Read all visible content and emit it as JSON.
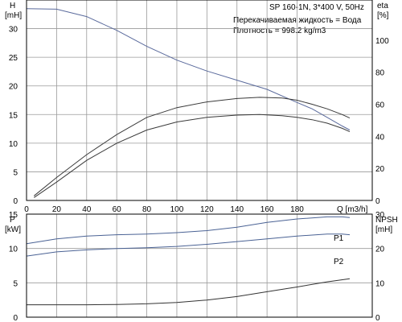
{
  "chart_data": [
    {
      "type": "line",
      "panel": "top",
      "title": "SP 160-1N, 3*400 V, 50Hz",
      "annotations": [
        "Перекачиваемая жидкость = Вода",
        "Плотность = 998.2 kg/m3"
      ],
      "xlabel": "Q [m3/h]",
      "ylabel_left": [
        "H",
        "[mH]"
      ],
      "ylabel_right": [
        "eta",
        "[%]"
      ],
      "xlim": [
        0,
        230
      ],
      "ylim_left": [
        0,
        35
      ],
      "ylim_right": [
        0,
        125
      ],
      "xticks": [
        0,
        20,
        40,
        60,
        80,
        100,
        120,
        140,
        160,
        180
      ],
      "yticks_left": [
        0,
        5,
        10,
        15,
        20,
        25,
        30
      ],
      "yticks_right": [
        0,
        20,
        40,
        60,
        80,
        100
      ],
      "grid": true,
      "series": [
        {
          "axis": "left",
          "color": "#5a6a9c",
          "x": [
            0,
            20,
            40,
            60,
            80,
            100,
            120,
            140,
            160,
            180,
            190,
            200,
            210,
            215
          ],
          "y": [
            33.5,
            33.4,
            32.1,
            29.7,
            26.9,
            24.5,
            22.6,
            21.0,
            19.4,
            17.1,
            16.0,
            14.5,
            13.0,
            12.3
          ]
        },
        {
          "axis": "left",
          "color": "#3a3a3a",
          "x": [
            5,
            20,
            40,
            60,
            80,
            100,
            120,
            140,
            155,
            170,
            180,
            190,
            200,
            210,
            215
          ],
          "y": [
            0.8,
            4.0,
            8.0,
            11.5,
            14.5,
            16.2,
            17.2,
            17.8,
            18.0,
            17.9,
            17.5,
            16.8,
            16.0,
            15.0,
            14.4
          ]
        },
        {
          "axis": "left",
          "color": "#3a3a3a",
          "x": [
            5,
            20,
            40,
            60,
            80,
            100,
            120,
            140,
            155,
            170,
            180,
            190,
            200,
            210,
            215
          ],
          "y": [
            0.5,
            3.2,
            7.0,
            10.0,
            12.3,
            13.7,
            14.5,
            14.9,
            15.0,
            14.8,
            14.5,
            14.1,
            13.5,
            12.6,
            12.0
          ]
        }
      ]
    },
    {
      "type": "line",
      "panel": "bottom",
      "xlim": [
        0,
        230
      ],
      "ylim_left": [
        0,
        15
      ],
      "ylim_right": [
        0,
        30
      ],
      "ylabel_left": [
        "P",
        "[kW]"
      ],
      "ylabel_right": [
        "NPSH",
        "[mH]"
      ],
      "yticks_left": [
        0,
        5,
        10,
        15
      ],
      "yticks_right": [
        0,
        10,
        20,
        30
      ],
      "xtick_positions": [
        0,
        20,
        40,
        60,
        80,
        100,
        120,
        140,
        160,
        180
      ],
      "grid": true,
      "series": [
        {
          "name": "P1",
          "axis": "left",
          "color": "#4a6294",
          "x": [
            0,
            20,
            40,
            60,
            80,
            100,
            120,
            140,
            160,
            180,
            200,
            210,
            215
          ],
          "y": [
            10.7,
            11.4,
            11.8,
            12.0,
            12.1,
            12.3,
            12.6,
            13.1,
            13.8,
            14.3,
            14.6,
            14.6,
            14.5
          ]
        },
        {
          "name": "P2",
          "axis": "left",
          "color": "#4a6294",
          "x": [
            0,
            20,
            40,
            60,
            80,
            100,
            120,
            140,
            160,
            180,
            200,
            210,
            215
          ],
          "y": [
            8.9,
            9.5,
            9.8,
            10.0,
            10.1,
            10.3,
            10.6,
            11.0,
            11.4,
            11.8,
            12.1,
            12.1,
            12.0
          ]
        },
        {
          "axis": "right",
          "color": "#333333",
          "x": [
            0,
            20,
            40,
            60,
            80,
            100,
            120,
            140,
            160,
            180,
            200,
            215
          ],
          "y": [
            3.6,
            3.6,
            3.6,
            3.7,
            3.9,
            4.3,
            5.0,
            6.0,
            7.4,
            8.8,
            10.3,
            11.2
          ]
        }
      ]
    }
  ]
}
